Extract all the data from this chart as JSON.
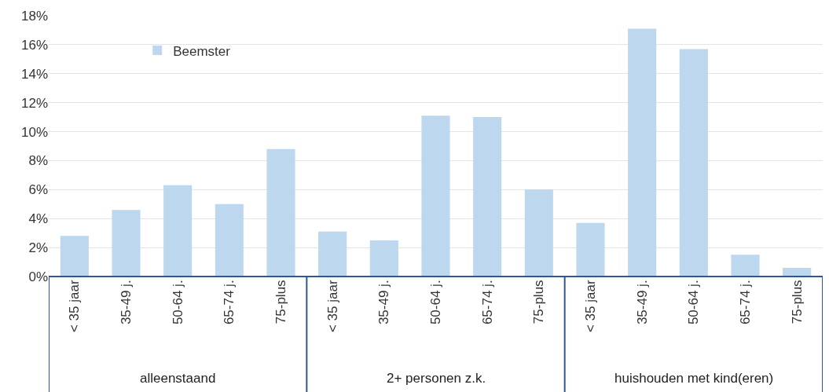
{
  "chart_data": {
    "type": "bar",
    "categories": [
      "< 35 jaar",
      "35-49 j.",
      "50-64 j.",
      "65-74 j.",
      "75-plus",
      "< 35 jaar",
      "35-49 j.",
      "50-64 j.",
      "65-74 j.",
      "75-plus",
      "< 35 jaar",
      "35-49 j.",
      "50-64 j.",
      "65-74 j.",
      "75-plus"
    ],
    "series": [
      {
        "name": "Beemster",
        "color": "#bdd7ee",
        "values": [
          2.8,
          4.6,
          6.3,
          5.0,
          8.8,
          3.1,
          2.5,
          11.1,
          11.0,
          6.0,
          3.7,
          17.1,
          15.7,
          1.5,
          0.6
        ]
      }
    ],
    "annotations": [
      "alleenstaand",
      "2+ personen z.k.",
      "huishouden met kind(eren)"
    ],
    "ylim": [
      0,
      18
    ],
    "yticks": [
      {
        "value": 0,
        "label": "0%"
      },
      {
        "value": 2,
        "label": "2%"
      },
      {
        "value": 4,
        "label": "4%"
      },
      {
        "value": 6,
        "label": "6%"
      },
      {
        "value": 8,
        "label": "8%"
      },
      {
        "value": 10,
        "label": "10%"
      },
      {
        "value": 12,
        "label": "12%"
      },
      {
        "value": 14,
        "label": "14%"
      },
      {
        "value": 16,
        "label": "16%"
      },
      {
        "value": 18,
        "label": "18%"
      }
    ],
    "grid": "y",
    "legend": "top left"
  }
}
